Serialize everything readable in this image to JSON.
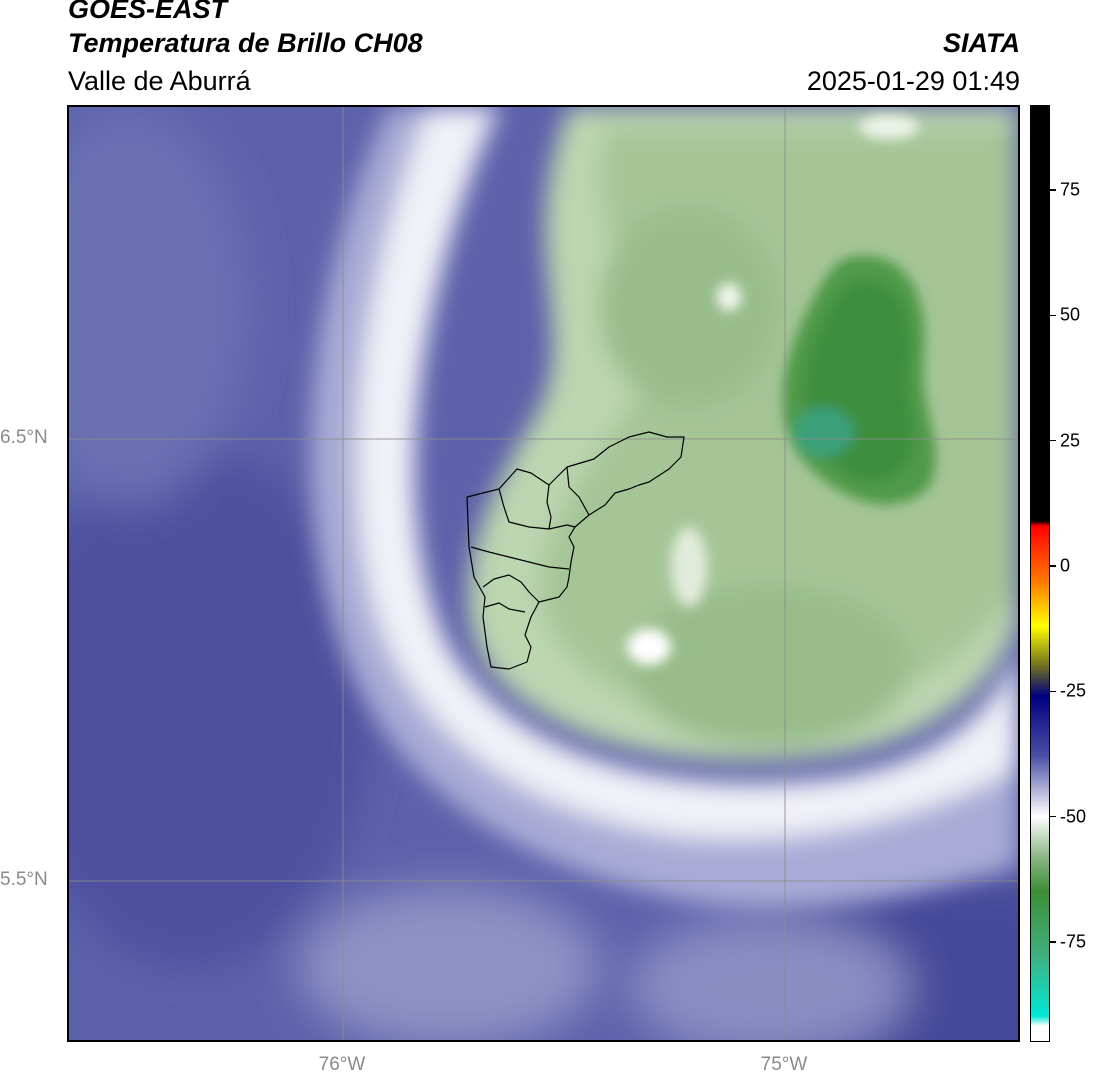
{
  "header": {
    "satellite": "GOES-EAST",
    "product": "Temperatura de Brillo CH08",
    "region": "Valle de Aburrá",
    "organization": "SIATA",
    "timestamp": "2025-01-29 01:49"
  },
  "map": {
    "lat_labels": [
      "6.5°N",
      "5.5°N"
    ],
    "lon_labels": [
      "76°W",
      "75°W"
    ],
    "gridline_color": "#8c8c8c",
    "palette": {
      "cold_field": "#5a5fa8",
      "transition_ring": "#f4f4fa",
      "cloud_core": "#a9c79a",
      "convective_core": "#3f8f3a",
      "boundary": "#000000"
    }
  },
  "colorbar": {
    "ticks": [
      "75",
      "50",
      "25",
      "0",
      "-25",
      "-50",
      "-75"
    ],
    "tick_values": [
      75,
      50,
      25,
      0,
      -25,
      -50,
      -75
    ],
    "range": [
      -95,
      92
    ],
    "stops": [
      {
        "value": 92,
        "color": "#000000"
      },
      {
        "value": 9,
        "color": "#000000"
      },
      {
        "value": 8,
        "color": "#ff0000"
      },
      {
        "value": -3,
        "color": "#ff7700"
      },
      {
        "value": -12,
        "color": "#ffff00"
      },
      {
        "value": -20,
        "color": "#707020"
      },
      {
        "value": -26,
        "color": "#000080"
      },
      {
        "value": -38,
        "color": "#4a4fa5"
      },
      {
        "value": -50,
        "color": "#ffffff"
      },
      {
        "value": -58,
        "color": "#8fb888"
      },
      {
        "value": -65,
        "color": "#3c8e36"
      },
      {
        "value": -78,
        "color": "#40b080"
      },
      {
        "value": -90,
        "color": "#00e8d8"
      },
      {
        "value": -92,
        "color": "#ffffff"
      },
      {
        "value": -95,
        "color": "#ffffff"
      }
    ]
  }
}
